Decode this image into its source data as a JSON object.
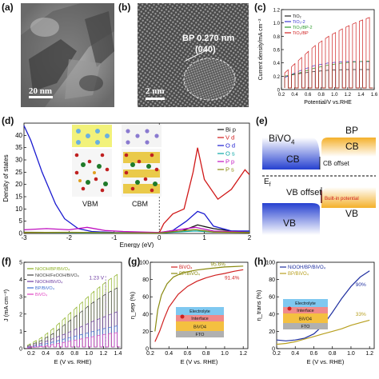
{
  "panels": {
    "a": {
      "label": "(a)",
      "scale_bar": "20 nm"
    },
    "b": {
      "label": "(b)",
      "scale_bar": "2 nm",
      "annotation_line1": "BP 0.270 nm",
      "annotation_line2": "(040)"
    },
    "c": {
      "label": "(c)"
    },
    "d": {
      "label": "(d)",
      "inset_left_label": "VBM",
      "inset_right_label": "CBM"
    },
    "e": {
      "label": "(e)",
      "left_material": "BiVO",
      "left_material_sub": "4",
      "right_material": "BP",
      "cb_left": "CB",
      "cb_right": "CB",
      "cb_offset": "CB offset",
      "ef": "E",
      "ef_sub": "f",
      "vb_offset": "VB offset",
      "builtin": "Built-in potential",
      "vb_left": "VB",
      "vb_right": "VB"
    },
    "f": {
      "label": "(f)",
      "annotation": "1.23 V"
    },
    "g": {
      "label": "(g)",
      "layers": [
        "Electrolyte",
        "Interface",
        "BiVO4",
        "FTO"
      ]
    },
    "h": {
      "label": "(h)",
      "layers": [
        "Electrolyte",
        "Interface",
        "BiVO4",
        "FTO"
      ]
    }
  },
  "chart_data": [
    {
      "panel": "c",
      "type": "line",
      "xlabel": "Potential/V vs.RHE",
      "ylabel": "Current density/mA cm⁻²",
      "xlim": [
        0.2,
        1.6
      ],
      "ylim": [
        0,
        1.2
      ],
      "xticks": [
        "0.2",
        "0.4",
        "0.6",
        "0.8",
        "1.0",
        "1.2",
        "1.4",
        "1.6"
      ],
      "yticks": [
        "0",
        "0.2",
        "0.4",
        "0.6",
        "0.8",
        "1.0",
        "1.2"
      ],
      "legend_position": "top-left",
      "series": [
        {
          "name": "TiO₂",
          "color": "#222222",
          "on_peak": [
            0.2,
            0.24,
            0.27,
            0.29,
            0.3,
            0.3,
            0.3
          ]
        },
        {
          "name": "TiO₂-2",
          "color": "#3a3ad0",
          "on_peak": [
            0.18,
            0.28,
            0.36,
            0.4,
            0.42,
            0.42,
            0.42
          ]
        },
        {
          "name": "TiO₂/BP-2",
          "color": "#2a9a2a",
          "on_peak": [
            0.2,
            0.25,
            0.32,
            0.37,
            0.4,
            0.42,
            0.43
          ]
        },
        {
          "name": "TiO₂/BP",
          "color": "#d02020",
          "on_peak": [
            0.25,
            0.45,
            0.65,
            0.8,
            0.92,
            1.02,
            1.1
          ]
        }
      ]
    },
    {
      "panel": "d",
      "type": "line",
      "xlabel": "Energy (eV)",
      "ylabel": "Density of states",
      "xlim": [
        -3,
        2
      ],
      "ylim": [
        0,
        45
      ],
      "xticks": [
        "-3",
        "-2",
        "-1",
        "0",
        "1",
        "2"
      ],
      "yticks": [
        "0",
        "5",
        "10",
        "15",
        "20",
        "25",
        "30",
        "35",
        "40"
      ],
      "legend_position": "top-right",
      "series": [
        {
          "name": "Bi p",
          "color": "#111111",
          "points": [
            [
              -3,
              0.5
            ],
            [
              -2,
              0.4
            ],
            [
              -1,
              0.3
            ],
            [
              0,
              0.4
            ],
            [
              0.5,
              1
            ],
            [
              0.85,
              3.5
            ],
            [
              1.2,
              2
            ],
            [
              1.6,
              1
            ],
            [
              2,
              0.8
            ]
          ]
        },
        {
          "name": "V d",
          "color": "#d01818",
          "points": [
            [
              -3,
              0.2
            ],
            [
              -1,
              0.2
            ],
            [
              0,
              0.3
            ],
            [
              0.1,
              4
            ],
            [
              0.3,
              8
            ],
            [
              0.55,
              10
            ],
            [
              0.75,
              25
            ],
            [
              0.85,
              35
            ],
            [
              1.0,
              22
            ],
            [
              1.3,
              14
            ],
            [
              1.6,
              18
            ],
            [
              1.9,
              26
            ],
            [
              2,
              24
            ]
          ]
        },
        {
          "name": "O d",
          "color": "#1a1ad0",
          "points": [
            [
              -3,
              44
            ],
            [
              -2.85,
              38
            ],
            [
              -2.6,
              25
            ],
            [
              -2.3,
              12
            ],
            [
              -2.1,
              6
            ],
            [
              -1.8,
              2
            ],
            [
              -1.5,
              0.8
            ],
            [
              -1,
              0.4
            ],
            [
              0,
              0.3
            ],
            [
              0.3,
              1.2
            ],
            [
              0.6,
              5
            ],
            [
              0.85,
              9
            ],
            [
              1.0,
              8
            ],
            [
              1.2,
              3
            ],
            [
              1.6,
              1
            ],
            [
              2,
              1
            ]
          ]
        },
        {
          "name": "O s",
          "color": "#0aa6a6",
          "points": [
            [
              -3,
              0.3
            ],
            [
              -2,
              0.3
            ],
            [
              -1,
              0.2
            ],
            [
              0,
              0.2
            ],
            [
              0.8,
              1
            ],
            [
              1.2,
              0.6
            ],
            [
              2,
              0.6
            ]
          ]
        },
        {
          "name": "P p",
          "color": "#c010c0",
          "points": [
            [
              -3,
              1.5
            ],
            [
              -2.5,
              2
            ],
            [
              -2,
              1.5
            ],
            [
              -1.6,
              2.5
            ],
            [
              -1.2,
              1.2
            ],
            [
              -0.8,
              0.8
            ],
            [
              0,
              0.4
            ],
            [
              0.8,
              2.5
            ],
            [
              1.2,
              1
            ],
            [
              2,
              0.5
            ]
          ]
        },
        {
          "name": "P s",
          "color": "#8a8a10",
          "points": [
            [
              -3,
              0.4
            ],
            [
              -2,
              0.5
            ],
            [
              -1,
              0.3
            ],
            [
              0,
              0.2
            ],
            [
              0.8,
              1.6
            ],
            [
              1.2,
              0.6
            ],
            [
              2,
              0.4
            ]
          ]
        }
      ]
    },
    {
      "panel": "f",
      "type": "line",
      "xlabel": "E (V vs. RHE)",
      "ylabel": "J (mA cm⁻²)",
      "xlim": [
        0.1,
        1.45
      ],
      "ylim": [
        0,
        5
      ],
      "xticks": [
        "0.2",
        "0.4",
        "0.6",
        "0.8",
        "1.0",
        "1.2",
        "1.4"
      ],
      "yticks": [
        "0",
        "1",
        "2",
        "3",
        "4",
        "5"
      ],
      "legend_position": "top-left",
      "series": [
        {
          "name": "NiOOH/BP/BiVO₄",
          "color": "#8ab020",
          "on_peak": [
            0.2,
            0.6,
            1.2,
            1.9,
            2.6,
            3.3,
            3.9,
            4.4
          ]
        },
        {
          "name": "NiOOH/FeOOH/BiVO₄",
          "color": "#444444",
          "on_peak": [
            0.15,
            0.45,
            0.9,
            1.5,
            2.1,
            2.7,
            3.2,
            3.6
          ]
        },
        {
          "name": "NiOOH/BiVO₄",
          "color": "#6b3aa0",
          "on_peak": [
            0.1,
            0.3,
            0.6,
            0.9,
            1.25,
            1.6,
            1.9,
            2.2
          ]
        },
        {
          "name": "BP/BiVO₄",
          "color": "#3a6ad0",
          "on_peak": [
            0.05,
            0.2,
            0.4,
            0.6,
            0.8,
            1.0,
            1.2,
            1.35
          ]
        },
        {
          "name": "BiVO₄",
          "color": "#e040c0",
          "on_peak": [
            0.03,
            0.12,
            0.25,
            0.4,
            0.55,
            0.7,
            0.85,
            0.95
          ]
        }
      ]
    },
    {
      "panel": "g",
      "type": "line",
      "xlabel": "E (V vs. RHE)",
      "ylabel": "η_sep (%)",
      "xlim": [
        0.2,
        1.25
      ],
      "ylim": [
        0,
        100
      ],
      "xticks": [
        "0.2",
        "0.4",
        "0.6",
        "0.8",
        "1.0",
        "1.2"
      ],
      "yticks": [
        "0",
        "20",
        "40",
        "60",
        "80",
        "100"
      ],
      "legend_position": "top-left",
      "annotations": [
        "95.6%",
        "91.4%"
      ],
      "series": [
        {
          "name": "BiVO₄",
          "color": "#d02020",
          "points": [
            [
              0.25,
              8
            ],
            [
              0.3,
              20
            ],
            [
              0.35,
              35
            ],
            [
              0.4,
              48
            ],
            [
              0.5,
              63
            ],
            [
              0.6,
              72
            ],
            [
              0.7,
              78
            ],
            [
              0.8,
              82
            ],
            [
              0.9,
              85
            ],
            [
              1.0,
              87
            ],
            [
              1.1,
              89.5
            ],
            [
              1.2,
              91.4
            ]
          ]
        },
        {
          "name": "BP/BiVO₄",
          "color": "#8a8a10",
          "points": [
            [
              0.25,
              20
            ],
            [
              0.28,
              45
            ],
            [
              0.32,
              62
            ],
            [
              0.38,
              75
            ],
            [
              0.45,
              83
            ],
            [
              0.55,
              88
            ],
            [
              0.7,
              91
            ],
            [
              0.85,
              93
            ],
            [
              1.0,
              94.5
            ],
            [
              1.1,
              95
            ],
            [
              1.2,
              95.6
            ]
          ]
        }
      ]
    },
    {
      "panel": "h",
      "type": "line",
      "xlabel": "E (V vs. RHE)",
      "ylabel": "η_trans (%)",
      "xlim": [
        0.2,
        1.25
      ],
      "ylim": [
        0,
        100
      ],
      "xticks": [
        "0.2",
        "0.4",
        "0.6",
        "0.8",
        "1.0",
        "1.2"
      ],
      "yticks": [
        "0",
        "20",
        "40",
        "60",
        "80",
        "100"
      ],
      "legend_position": "top-left",
      "annotations": [
        "90%",
        "33%"
      ],
      "series": [
        {
          "name": "NiOOH/BP/BiVO₄",
          "color": "#2030a0",
          "points": [
            [
              0.2,
              10
            ],
            [
              0.3,
              9
            ],
            [
              0.4,
              10
            ],
            [
              0.5,
              12
            ],
            [
              0.6,
              17
            ],
            [
              0.7,
              27
            ],
            [
              0.8,
              42
            ],
            [
              0.9,
              58
            ],
            [
              1.0,
              72
            ],
            [
              1.1,
              83
            ],
            [
              1.2,
              90
            ]
          ]
        },
        {
          "name": "BP/BiVO₄",
          "color": "#b8a020",
          "points": [
            [
              0.2,
              5
            ],
            [
              0.3,
              6
            ],
            [
              0.4,
              8
            ],
            [
              0.5,
              11
            ],
            [
              0.6,
              14
            ],
            [
              0.7,
              17
            ],
            [
              0.8,
              20
            ],
            [
              0.9,
              23
            ],
            [
              1.0,
              27
            ],
            [
              1.1,
              30
            ],
            [
              1.2,
              33
            ]
          ]
        }
      ]
    }
  ]
}
